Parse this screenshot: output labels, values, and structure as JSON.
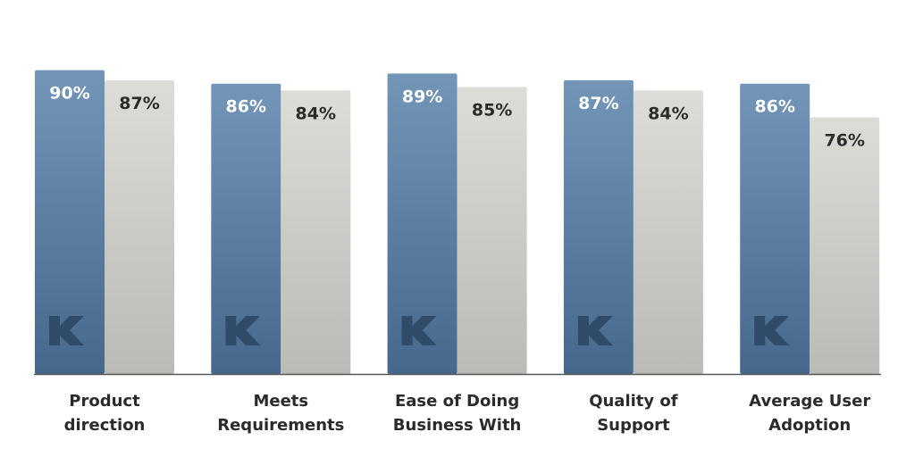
{
  "chart_data": {
    "type": "bar",
    "title": "",
    "xlabel": "",
    "ylabel": "",
    "ylim": [
      0,
      92
    ],
    "grid": false,
    "categories": [
      [
        "Product",
        "direction"
      ],
      [
        "Meets",
        "Requirements"
      ],
      [
        "Ease of Doing",
        "Business With"
      ],
      [
        "Quality of",
        "Support"
      ],
      [
        "Average User",
        "Adoption"
      ]
    ],
    "series": [
      {
        "values": [
          90,
          86,
          89,
          87,
          86
        ],
        "labels": [
          "90%",
          "86%",
          "89%",
          "87%",
          "86%"
        ],
        "color_top": "#7295b8",
        "color_bottom": "#46688d",
        "label_color": "#ffffff",
        "watermark": "K",
        "watermark_color": "#2f4b68"
      },
      {
        "values": [
          87,
          84,
          85,
          84,
          76
        ],
        "labels": [
          "87%",
          "84%",
          "85%",
          "84%",
          "76%"
        ],
        "color_top": "#dddcd7",
        "color_bottom": "#babab6",
        "label_color": "#2b2b2b"
      }
    ],
    "axis_color": "#555555"
  }
}
